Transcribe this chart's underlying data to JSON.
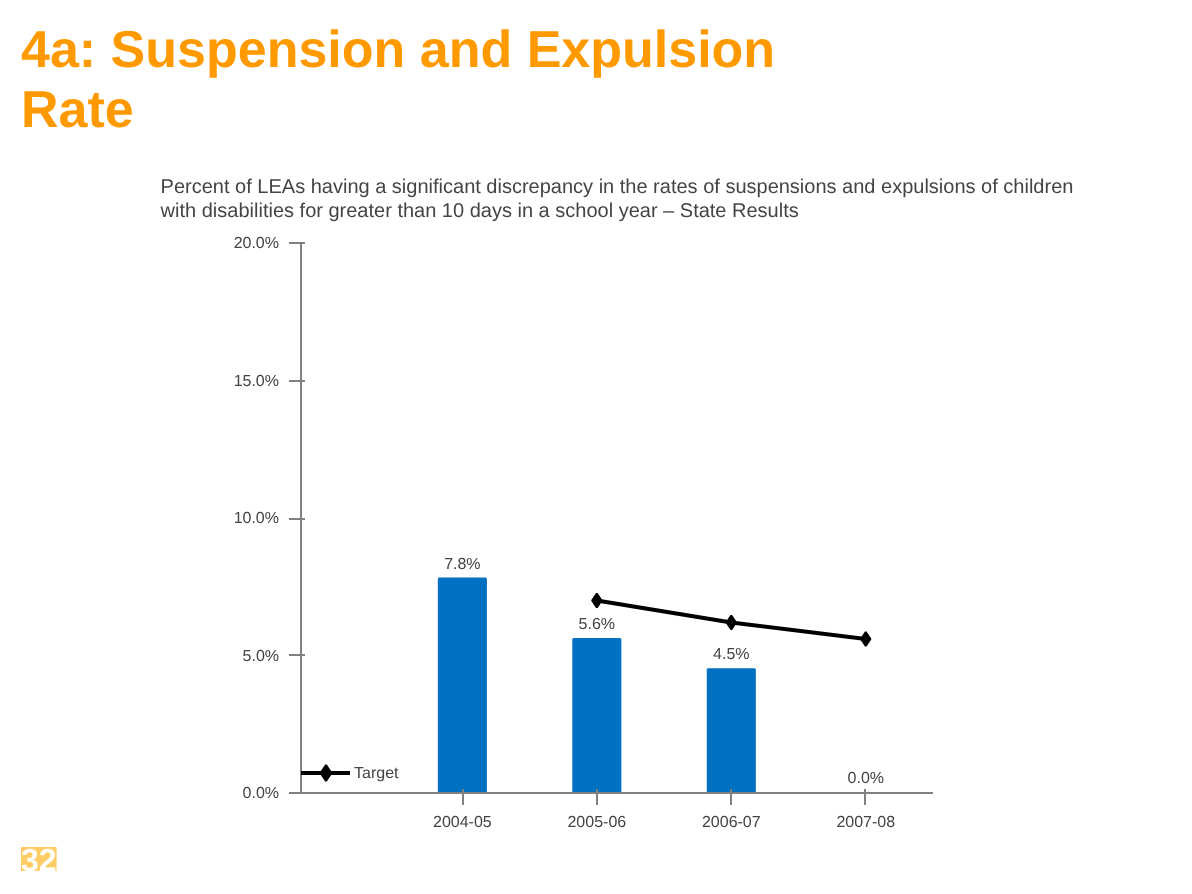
{
  "chart_data": {
    "type": "bar",
    "title": "4a:  Suspension and Expulsion Rate",
    "subtitle": "Percent of LEAs having a significant discrepancy in the rates of suspensions and expulsions of children with disabilities for greater than 10 days in a school year – State Results",
    "categories": [
      "2004-05",
      "2005-06",
      "2006-07",
      "2007-08"
    ],
    "series": [
      {
        "color": "#0070c0",
        "values": [
          7.8,
          5.6,
          4.5,
          0.0
        ],
        "value_labels": [
          "7.8%",
          "5.6%",
          "4.5%",
          "0.0%"
        ]
      },
      {
        "type": "line",
        "name": "Target",
        "color": "#000000",
        "values": [
          null,
          7.0,
          6.2,
          5.6
        ],
        "marker": "diamond",
        "line_style": "solid"
      }
    ],
    "ylim": [
      0,
      20
    ],
    "yticks": [
      {
        "value": 0,
        "label": "0.0%"
      },
      {
        "value": 5,
        "label": "5.0%"
      },
      {
        "value": 10,
        "label": "10.0%"
      },
      {
        "value": 15,
        "label": "15.0%"
      },
      {
        "value": 20,
        "label": "20.0%"
      }
    ],
    "grid": false,
    "legend": "bottom left",
    "annotations": [
      "32"
    ]
  }
}
